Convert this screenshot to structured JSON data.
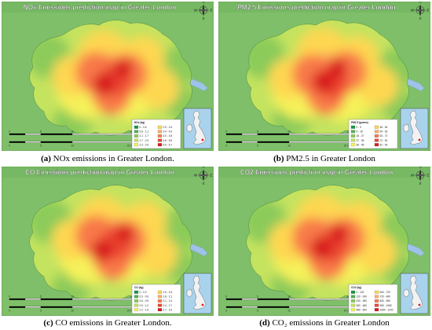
{
  "figure": {
    "panels": [
      {
        "id": "a",
        "map_title": "NOx Emissions prediction map in Greater London",
        "caption_label": "(a)",
        "caption_text": " NOx emissions in Greater London.",
        "legend_title": "NOx (kg)",
        "legend_items": [
          "0 - 0.6",
          "0.6 - 1.1",
          "1.1 - 1.7",
          "1.7 - 2.3",
          "2.3 - 2.9",
          "2.9 - 3.4",
          "3.4 - 4.0",
          "4.0 - 4.8",
          "4.8 - 5.6",
          "5.6 - 6.7"
        ],
        "scale_labels": [
          "0",
          "5",
          "10",
          "20 Miles"
        ],
        "scale_labels_km": [
          "0",
          "5",
          "10",
          "20 Kilometers"
        ]
      },
      {
        "id": "b",
        "map_title": "PM2.5 Emissions prediction map in Greater London",
        "caption_label": "(b)",
        "caption_text": " PM2.5 in Greater London",
        "legend_title": "PM2.5 (grams)",
        "legend_items": [
          "0 - 9",
          "9 - 18",
          "18 - 27",
          "27 - 36",
          "36 - 45",
          "45 - 54",
          "54 - 63",
          "63 - 72",
          "72 - 81",
          "81 - 90"
        ],
        "scale_labels": [
          "0",
          "5",
          "10",
          "20 Miles"
        ],
        "scale_labels_km": [
          "0",
          "5",
          "10",
          "20 Kilometers"
        ]
      },
      {
        "id": "c",
        "map_title": "CO Emissions prediction map in Greater London",
        "caption_label": "(c)",
        "caption_text": " CO emissions in Greater London.",
        "legend_title": "CO (kg)",
        "legend_items": [
          "0 - 0.3",
          "0.3 - 0.6",
          "0.6 - 0.9",
          "0.9 - 1.2",
          "1.2 - 1.5",
          "1.5 - 1.8",
          "1.8 - 2.1",
          "2.1 - 2.4",
          "2.4 - 2.7",
          "2.7 - 3.0"
        ],
        "scale_labels": [
          "0",
          "5",
          "10",
          "20 Miles"
        ],
        "scale_labels_km": [
          "0",
          "5",
          "10",
          "20 Kilometers"
        ]
      },
      {
        "id": "d",
        "map_title": "CO2 Emissions prediction map in Greater London",
        "caption_label": "(d)",
        "caption_text": " CO₂ emissions in Greater London",
        "legend_title": "CO2 (kg)",
        "legend_items": [
          "0 - 120",
          "120 - 240",
          "240 - 360",
          "360 - 480",
          "480 - 600",
          "600 - 720",
          "720 - 840",
          "840 - 960",
          "960 - 1080",
          "1080 - 1200"
        ],
        "scale_labels": [
          "0",
          "5",
          "10",
          "20 Miles"
        ],
        "scale_labels_km": [
          "0",
          "5",
          "10",
          "20 Kilometers"
        ]
      }
    ],
    "colors": {
      "background": "#7fbf6a",
      "title_band": "#6fb35c",
      "title_text": "#ffffff",
      "ramp": [
        "#1a9641",
        "#52b151",
        "#8ccb5a",
        "#c4e35f",
        "#f5f25a",
        "#fed751",
        "#fdae61",
        "#f8794a",
        "#ec4630",
        "#d7191c"
      ],
      "thames": "#9fc3e8"
    },
    "compass_letters": [
      "N",
      "E",
      "S",
      "W"
    ]
  }
}
